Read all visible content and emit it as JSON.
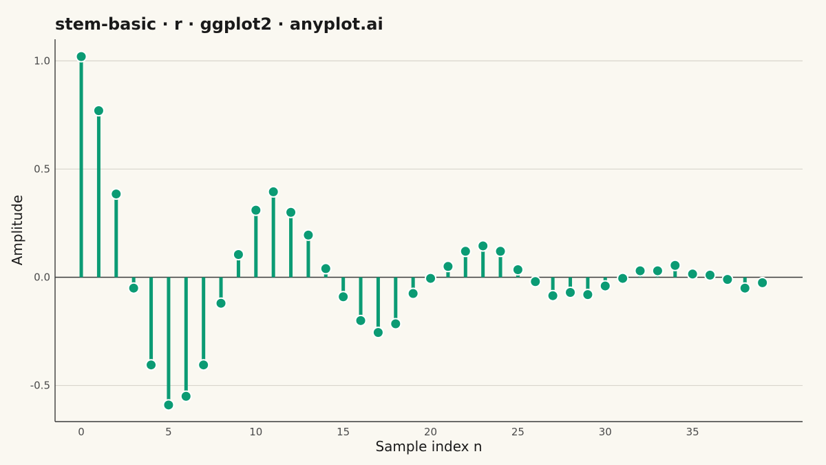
{
  "chart_data": {
    "type": "stem",
    "title": "stem-basic · r · ggplot2 · anyplot.ai",
    "xlabel": "Sample index n",
    "ylabel": "Amplitude",
    "xlim": [
      -1.5,
      41.3
    ],
    "ylim": [
      -0.667,
      1.1
    ],
    "x_ticks": [
      0,
      5,
      10,
      15,
      20,
      25,
      30,
      35
    ],
    "x_tick_labels": [
      "0",
      "5",
      "10",
      "15",
      "20",
      "25",
      "30",
      "35"
    ],
    "y_ticks": [
      1.0,
      0.5,
      0.0,
      -0.5
    ],
    "y_tick_labels": [
      "1.0",
      "0.5",
      "0.0",
      "-0.5"
    ],
    "grid": "horizontal",
    "baseline": 0,
    "x": [
      0,
      1,
      2,
      3,
      4,
      5,
      6,
      7,
      8,
      9,
      10,
      11,
      12,
      13,
      14,
      15,
      16,
      17,
      18,
      19,
      20,
      21,
      22,
      23,
      24,
      25,
      26,
      27,
      28,
      29,
      30,
      31,
      32,
      33,
      34,
      35,
      36,
      37,
      38,
      39
    ],
    "values": [
      1.02,
      0.77,
      0.385,
      -0.05,
      -0.405,
      -0.59,
      -0.55,
      -0.405,
      -0.12,
      0.105,
      0.31,
      0.395,
      0.3,
      0.195,
      0.04,
      -0.09,
      -0.2,
      -0.255,
      -0.215,
      -0.075,
      -0.005,
      0.05,
      0.12,
      0.145,
      0.12,
      0.035,
      -0.02,
      -0.085,
      -0.07,
      -0.08,
      -0.04,
      -0.005,
      0.03,
      0.03,
      0.055,
      0.015,
      0.01,
      -0.01,
      -0.05,
      -0.025
    ],
    "colors": {
      "stem": "#0B9B74",
      "marker": "#0B9B74",
      "marker_outline": "#FFFFFF",
      "grid": "#D8D5CC",
      "axis": "#3A3A3A",
      "baseline": "#3A3A3A",
      "background": "#FAF8F1"
    }
  }
}
